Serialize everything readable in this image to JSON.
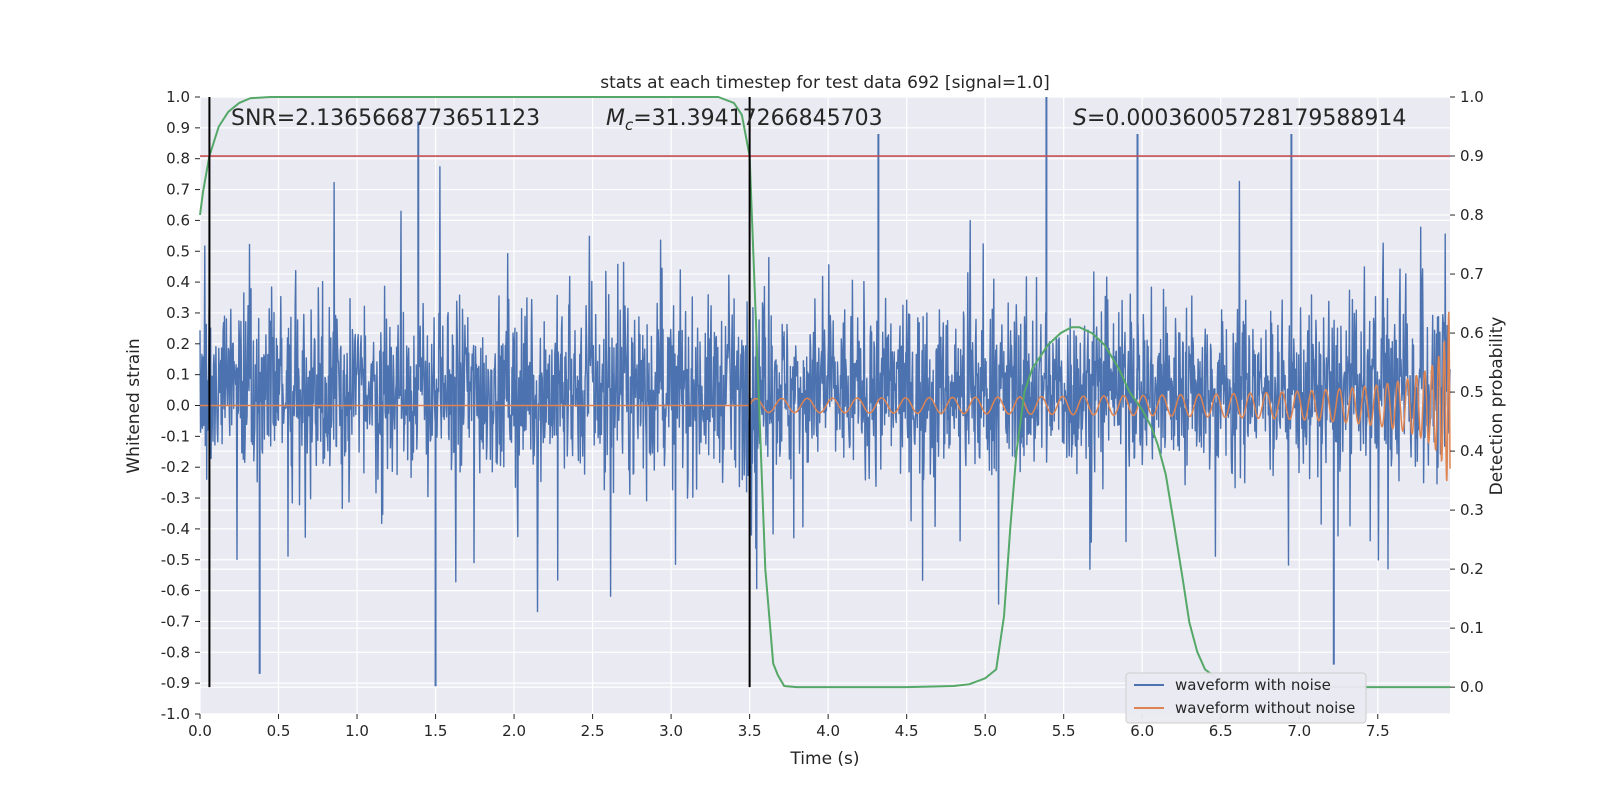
{
  "chart_data": {
    "type": "line",
    "title": "stats at each timestep for test data 692 [signal=1.0]",
    "xlabel": "Time (s)",
    "ylabel": "Whitened strain",
    "ylabel_right": "Detection probability",
    "xlim": [
      0.0,
      7.96
    ],
    "ylim": [
      -1.0,
      1.0
    ],
    "ylim_right": [
      -0.0455,
      1.0
    ],
    "x_ticks": [
      "0.0",
      "0.5",
      "1.0",
      "1.5",
      "2.0",
      "2.5",
      "3.0",
      "3.5",
      "4.0",
      "4.5",
      "5.0",
      "5.5",
      "6.0",
      "6.5",
      "7.0",
      "7.5"
    ],
    "y_ticks": [
      "1.0",
      "0.9",
      "0.8",
      "0.7",
      "0.6",
      "0.5",
      "0.4",
      "0.3",
      "0.2",
      "0.1",
      "0.0",
      "-0.1",
      "-0.2",
      "-0.3",
      "-0.4",
      "-0.5",
      "-0.6",
      "-0.7",
      "-0.8",
      "-0.9",
      "-1.0"
    ],
    "y_ticks_right": [
      "1.0",
      "0.9",
      "0.8",
      "0.7",
      "0.6",
      "0.5",
      "0.4",
      "0.3",
      "0.2",
      "0.1",
      "0.0"
    ],
    "grid": true,
    "legend_position": "lower-right",
    "legend": [
      "waveform with noise",
      "waveform without noise"
    ],
    "annotations": {
      "snr": "SNR=2.1365668773651123",
      "mc_symbol": "M",
      "mc_subscript": "c",
      "mc_value": "=31.39417266845703",
      "s_symbol": "S",
      "s_value": "=0.00036005728179588914"
    },
    "colors": {
      "noise": "#4c72b0",
      "clean": "#dd8452",
      "probability": "#55a868",
      "threshold": "#c44e52",
      "markers": "#000000",
      "background": "#eaeaf2",
      "grid": "#ffffff"
    },
    "threshold_probability": 0.9,
    "vertical_markers_x": [
      0.06,
      3.5
    ],
    "series": [
      {
        "name": "waveform with noise",
        "axis": "left",
        "description_values": "dense noise, mostly within [-0.4, 0.5]",
        "peaks": [
          {
            "x": 1.39,
            "y": 0.92
          },
          {
            "x": 1.5,
            "y": -0.91
          },
          {
            "x": 4.32,
            "y": 0.88
          },
          {
            "x": 5.39,
            "y": 1.0
          },
          {
            "x": 5.97,
            "y": 0.88
          },
          {
            "x": 6.95,
            "y": 0.88
          },
          {
            "x": 7.22,
            "y": -0.84
          },
          {
            "x": 0.38,
            "y": -0.87
          }
        ]
      },
      {
        "name": "waveform without noise",
        "axis": "left",
        "chirp": {
          "start_x": 3.5,
          "end_x": 7.96,
          "final_amplitude": 0.4
        }
      },
      {
        "axis": "right",
        "x": [
          0.0,
          0.02,
          0.06,
          0.12,
          0.18,
          0.25,
          0.32,
          0.45,
          0.6,
          1.0,
          2.0,
          3.0,
          3.3,
          3.4,
          3.45,
          3.5,
          3.55,
          3.6,
          3.65,
          3.68,
          3.72,
          3.8,
          4.0,
          4.5,
          4.8,
          4.9,
          5.0,
          5.07,
          5.12,
          5.16,
          5.2,
          5.25,
          5.3,
          5.4,
          5.48,
          5.55,
          5.6,
          5.68,
          5.76,
          5.85,
          5.92,
          6.0,
          6.06,
          6.1,
          6.15,
          6.2,
          6.26,
          6.3,
          6.35,
          6.4,
          6.5,
          6.7,
          7.0,
          7.5,
          7.96
        ],
        "y": [
          0.8,
          0.84,
          0.9,
          0.95,
          0.975,
          0.99,
          0.998,
          1.0,
          1.0,
          1.0,
          1.0,
          1.0,
          1.0,
          0.99,
          0.97,
          0.9,
          0.55,
          0.2,
          0.04,
          0.02,
          0.002,
          0.0,
          0.0,
          0.0,
          0.002,
          0.005,
          0.015,
          0.03,
          0.12,
          0.27,
          0.4,
          0.5,
          0.54,
          0.58,
          0.6,
          0.61,
          0.61,
          0.6,
          0.58,
          0.54,
          0.5,
          0.47,
          0.44,
          0.41,
          0.36,
          0.28,
          0.18,
          0.11,
          0.06,
          0.03,
          0.01,
          0.003,
          0.0,
          0.0,
          0.0
        ]
      }
    ]
  }
}
